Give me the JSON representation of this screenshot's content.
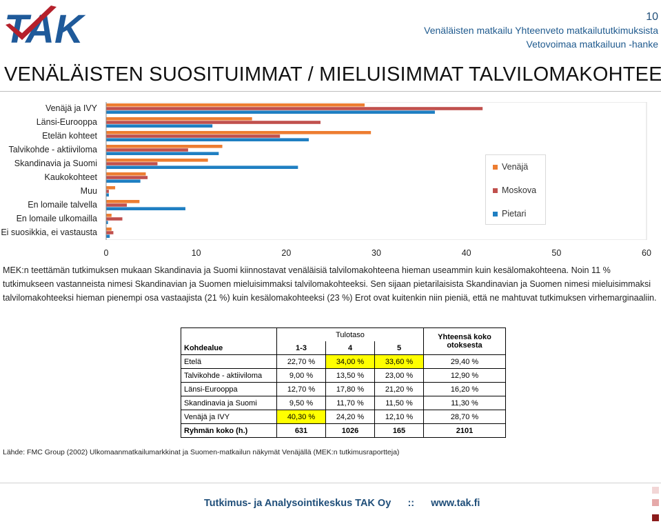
{
  "header": {
    "logo_text": "TAK",
    "page_number": "10",
    "subtitle_line1": "Venäläisten matkailu Yhteenveto matkailututkimuksista",
    "subtitle_line2": "Vetovoimaa matkailuun -hanke"
  },
  "title": "VENÄLÄISTEN SUOSITUIMMAT / MIELUISIMMAT TALVILOMAKOHTEET",
  "chart_data": {
    "type": "bar",
    "orientation": "horizontal",
    "categories": [
      "Venäjä ja IVY",
      "Länsi-Eurooppa",
      "Etelän kohteet",
      "Talvikohde - aktiiviloma",
      "Skandinavia ja Suomi",
      "Kaukokohteet",
      "Muu",
      "En lomaile talvella",
      "En lomaile ulkomailla",
      "Ei suosikkia, ei vastausta"
    ],
    "series": [
      {
        "name": "Venäjä",
        "color": "#ed7d31",
        "values": [
          28.7,
          16.2,
          29.4,
          12.9,
          11.3,
          4.4,
          1.0,
          3.7,
          0.6,
          0.6
        ]
      },
      {
        "name": "Moskova",
        "color": "#c0504d",
        "values": [
          41.8,
          23.8,
          19.3,
          9.1,
          5.7,
          4.6,
          0.3,
          2.3,
          1.8,
          0.8
        ]
      },
      {
        "name": "Pietari",
        "color": "#1f7fc2",
        "values": [
          36.5,
          11.8,
          22.5,
          12.5,
          21.3,
          3.8,
          0.3,
          8.8,
          0.2,
          0.4
        ]
      }
    ],
    "xlim": [
      0,
      60
    ],
    "xticks": [
      "0",
      "10",
      "20",
      "30",
      "40",
      "50",
      "60"
    ],
    "grid": false,
    "legend_position": "right"
  },
  "body_text": "MEK:n teettämän tutkimuksen mukaan Skandinavia ja Suomi kiinnostavat venäläisiä talvilomakohteena hieman useammin kuin kesälomakohteena. Noin 11 % tutkimukseen vastanneista nimesi Skandinavian ja Suomen mieluisimmaksi talvilomakohteeksi. Sen sijaan pietarilaisista Skandinavian ja Suomen nimesi mieluisimmaksi talvilomakohteeksi hieman pienempi osa vastaajista (21 %) kuin kesälomakohteeksi (23 %) Erot ovat kuitenkin niin pieniä, että ne mahtuvat tutkimuksen virhemarginaaliin.",
  "table": {
    "group_header": "Tulotaso",
    "col_kohdealue": "Kohdealue",
    "col_1": "1-3",
    "col_2": "4",
    "col_3": "5",
    "col_total_1": "Yhteensä koko",
    "col_total_2": "otoksesta",
    "rows": [
      {
        "label": "Etelä",
        "c1": "22,70 %",
        "c2": "34,00 %",
        "c3": "33,60 %",
        "total": "29,40 %"
      },
      {
        "label": "Talvikohde - aktiiviloma",
        "c1": "9,00 %",
        "c2": "13,50 %",
        "c3": "23,00 %",
        "total": "12,90 %"
      },
      {
        "label": "Länsi-Eurooppa",
        "c1": "12,70 %",
        "c2": "17,80 %",
        "c3": "21,20 %",
        "total": "16,20 %"
      },
      {
        "label": "Skandinavia ja Suomi",
        "c1": "9,50 %",
        "c2": "11,70 %",
        "c3": "11,50 %",
        "total": "11,30 %"
      },
      {
        "label": "Venäjä ja IVY",
        "c1": "40,30 %",
        "c2": "24,20 %",
        "c3": "12,10 %",
        "total": "28,70 %"
      }
    ],
    "footer_row": {
      "label": "Ryhmän koko (h.)",
      "c1": "631",
      "c2": "1026",
      "c3": "165",
      "total": "2101"
    },
    "highlight_color": "#ffff00"
  },
  "source": "Lähde: FMC Group (2002) Ulkomaanmatkailumarkkinat ja Suomen-matkailun näkymät Venäjällä (MEK:n tutkimusraportteja)",
  "footer": {
    "org": "Tutkimus- ja Analysointikeskus TAK Oy",
    "sep": "::",
    "url": "www.tak.fi"
  }
}
